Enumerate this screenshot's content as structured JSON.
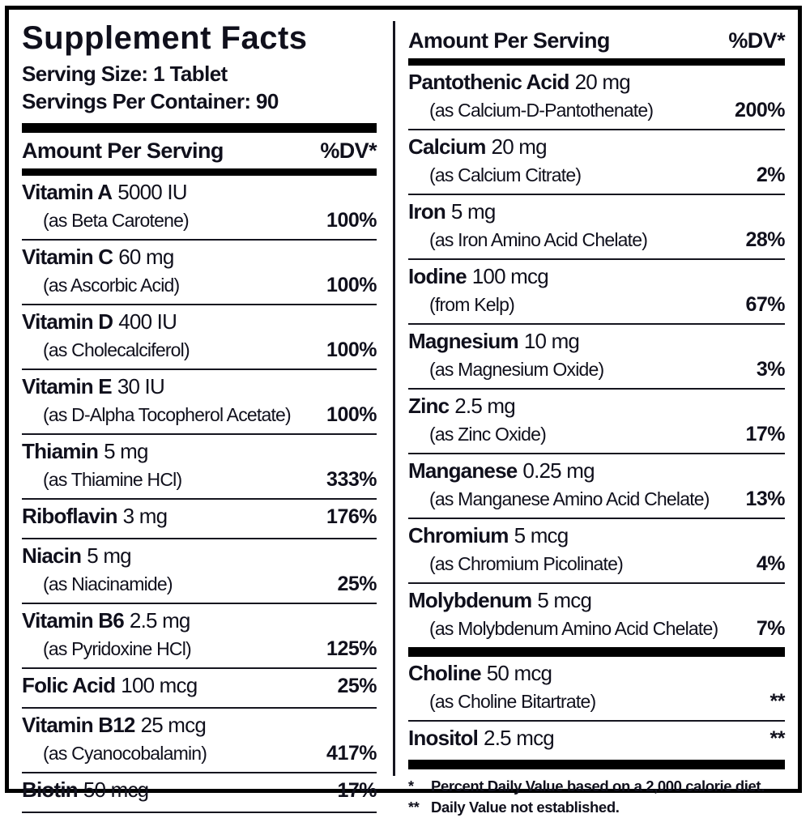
{
  "title": "Supplement Facts",
  "serving_size": "Serving Size: 1 Tablet",
  "servings_per_container": "Servings Per Container: 90",
  "columns": {
    "left": {
      "header": {
        "amount": "Amount Per Serving",
        "dv": "%DV*"
      },
      "rows": [
        {
          "name": "Vitamin A",
          "amount": "5000 IU",
          "form": "(as Beta Carotene)",
          "dv": "100%"
        },
        {
          "name": "Vitamin C",
          "amount": "60 mg",
          "form": "(as Ascorbic Acid)",
          "dv": "100%"
        },
        {
          "name": "Vitamin D",
          "amount": "400 IU",
          "form": "(as Cholecalciferol)",
          "dv": "100%"
        },
        {
          "name": "Vitamin E",
          "amount": "30 IU",
          "form": "(as D-Alpha Tocopherol Acetate)",
          "dv": "100%"
        },
        {
          "name": "Thiamin",
          "amount": "5 mg",
          "form": "(as Thiamine HCl)",
          "dv": "333%"
        },
        {
          "name": "Riboflavin",
          "amount": "3 mg",
          "dv": "176%"
        },
        {
          "name": "Niacin",
          "amount": "5 mg",
          "form": "(as Niacinamide)",
          "dv": "25%"
        },
        {
          "name": "Vitamin B6",
          "amount": "2.5 mg",
          "form": "(as Pyridoxine HCl)",
          "dv": "125%"
        },
        {
          "name": "Folic Acid",
          "amount": "100 mcg",
          "dv": "25%"
        },
        {
          "name": "Vitamin B12",
          "amount": "25 mcg",
          "form": "(as Cyanocobalamin)",
          "dv": "417%"
        },
        {
          "name": "Biotin",
          "amount": "50 mcg",
          "dv": "17%"
        }
      ]
    },
    "right": {
      "header": {
        "amount": "Amount Per Serving",
        "dv": "%DV*"
      },
      "rows": [
        {
          "name": "Pantothenic Acid",
          "amount": "20 mg",
          "form": "(as Calcium-D-Pantothenate)",
          "dv": "200%"
        },
        {
          "name": "Calcium",
          "amount": "20 mg",
          "form": "(as Calcium Citrate)",
          "dv": "2%"
        },
        {
          "name": "Iron",
          "amount": "5 mg",
          "form": "(as Iron Amino Acid Chelate)",
          "dv": "28%"
        },
        {
          "name": "Iodine",
          "amount": "100 mcg",
          "form": "(from Kelp)",
          "dv": "67%"
        },
        {
          "name": "Magnesium",
          "amount": "10 mg",
          "form": "(as Magnesium Oxide)",
          "dv": "3%"
        },
        {
          "name": "Zinc",
          "amount": "2.5 mg",
          "form": "(as Zinc Oxide)",
          "dv": "17%"
        },
        {
          "name": "Manganese",
          "amount": "0.25 mg",
          "form": "(as Manganese Amino Acid Chelate)",
          "dv": "13%"
        },
        {
          "name": "Chromium",
          "amount": "5 mcg",
          "form": "(as Chromium Picolinate)",
          "dv": "4%"
        },
        {
          "name": "Molybdenum",
          "amount": "5 mcg",
          "form": "(as Molybdenum Amino Acid Chelate)",
          "dv": "7%"
        },
        {
          "name": "Choline",
          "amount": "50 mcg",
          "form": "(as Choline Bitartrate)",
          "dv": "**"
        },
        {
          "name": "Inositol",
          "amount": "2.5 mcg",
          "dv": "**"
        }
      ]
    }
  },
  "footnotes": [
    {
      "marker": "*",
      "text": "Percent Daily Value based on a 2,000 calorie diet."
    },
    {
      "marker": "**",
      "text": "Daily Value not established."
    }
  ]
}
